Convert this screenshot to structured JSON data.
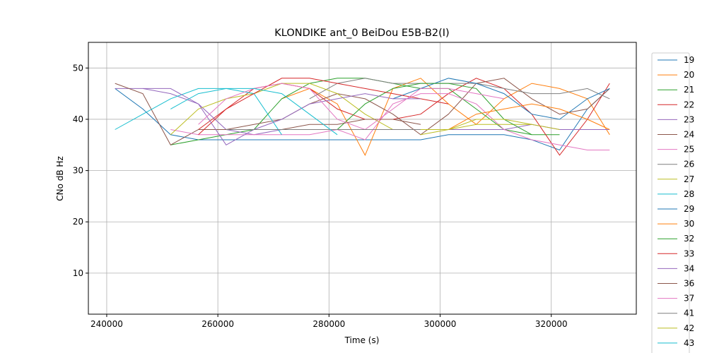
{
  "chart_data": {
    "type": "line",
    "title": "KLONDIKE ant_0 BeiDou E5B-B2(I)",
    "x_label": "Time (s)",
    "y_label": "CNo dB Hz",
    "xlim": [
      236700,
      335300
    ],
    "ylim": [
      2,
      55
    ],
    "xticks": [
      240000,
      260000,
      280000,
      300000,
      320000
    ],
    "yticks": [
      10,
      20,
      30,
      40,
      50
    ],
    "grid": true,
    "legend": "outside right",
    "x": [
      241500,
      246500,
      251500,
      256500,
      261500,
      266500,
      271500,
      276500,
      281500,
      286500,
      291500,
      296500,
      301500,
      306500,
      311500,
      316500,
      321500,
      326500,
      330500
    ],
    "series": [
      {
        "name": "19",
        "color": "#1f77b4",
        "values": [
          46,
          42,
          37,
          36,
          36,
          36,
          36,
          36,
          36,
          36,
          36,
          36,
          37,
          37,
          37,
          36,
          34,
          42,
          46
        ]
      },
      {
        "name": "20",
        "color": "#ff7f0e",
        "values": [
          null,
          null,
          null,
          null,
          null,
          null,
          44,
          46,
          43,
          33,
          46,
          48,
          43,
          39,
          44,
          47,
          46,
          44,
          37
        ]
      },
      {
        "name": "21",
        "color": "#2ca02c",
        "values": [
          null,
          null,
          35,
          36,
          37,
          38,
          44,
          47,
          48,
          48,
          47,
          46,
          46,
          42,
          38,
          37,
          37,
          null,
          null
        ]
      },
      {
        "name": "22",
        "color": "#d62728",
        "values": [
          null,
          null,
          null,
          38,
          42,
          46,
          47,
          46,
          42,
          40,
          40,
          41,
          45,
          48,
          46,
          41,
          33,
          40,
          47
        ]
      },
      {
        "name": "23",
        "color": "#9467bd",
        "values": [
          46,
          46,
          45,
          43,
          38,
          37,
          38,
          38,
          38,
          38,
          38,
          38,
          38,
          38,
          38,
          39,
          38,
          38,
          38
        ]
      },
      {
        "name": "24",
        "color": "#8c564b",
        "values": [
          47,
          45,
          35,
          38,
          38,
          39,
          40,
          43,
          45,
          44,
          41,
          37,
          41,
          47,
          48,
          44,
          41,
          42,
          46
        ]
      },
      {
        "name": "25",
        "color": "#e377c2",
        "values": [
          null,
          null,
          38,
          37,
          37,
          37,
          37,
          37,
          38,
          36,
          43,
          45,
          45,
          43,
          38,
          36,
          35,
          34,
          34
        ]
      },
      {
        "name": "26",
        "color": "#7f7f7f",
        "values": [
          null,
          null,
          null,
          null,
          null,
          null,
          null,
          44,
          47,
          48,
          47,
          47,
          47,
          47,
          46,
          45,
          45,
          46,
          44
        ]
      },
      {
        "name": "27",
        "color": "#bcbd22",
        "values": [
          null,
          null,
          37,
          42,
          44,
          45,
          47,
          47,
          45,
          41,
          38,
          38,
          38,
          39,
          39,
          39,
          38,
          null,
          null
        ]
      },
      {
        "name": "28",
        "color": "#17becf",
        "values": [
          38,
          41,
          44,
          46,
          46,
          45,
          37,
          null,
          null,
          null,
          null,
          null,
          null,
          null,
          null,
          null,
          null,
          null,
          null
        ]
      },
      {
        "name": "29",
        "color": "#1f77b4",
        "values": [
          null,
          null,
          null,
          null,
          null,
          null,
          null,
          null,
          null,
          null,
          44,
          46,
          48,
          47,
          45,
          41,
          40,
          44,
          46
        ]
      },
      {
        "name": "30",
        "color": "#ff7f0e",
        "values": [
          null,
          null,
          null,
          null,
          null,
          null,
          null,
          null,
          null,
          null,
          null,
          null,
          38,
          41,
          42,
          43,
          42,
          40,
          38
        ]
      },
      {
        "name": "32",
        "color": "#2ca02c",
        "values": [
          null,
          null,
          null,
          null,
          null,
          null,
          null,
          null,
          38,
          43,
          46,
          47,
          47,
          46,
          40,
          37,
          null,
          null,
          null
        ]
      },
      {
        "name": "33",
        "color": "#d62728",
        "values": [
          null,
          null,
          null,
          37,
          42,
          45,
          48,
          48,
          47,
          46,
          45,
          44,
          43,
          null,
          null,
          null,
          null,
          null,
          null
        ]
      },
      {
        "name": "34",
        "color": "#9467bd",
        "values": [
          null,
          46,
          46,
          43,
          35,
          38,
          40,
          43,
          44,
          45,
          44,
          44,
          null,
          null,
          null,
          null,
          null,
          null,
          null
        ]
      },
      {
        "name": "36",
        "color": "#8c564b",
        "values": [
          null,
          null,
          null,
          null,
          null,
          null,
          38,
          39,
          39,
          40,
          40,
          39,
          null,
          null,
          null,
          null,
          null,
          null,
          null
        ]
      },
      {
        "name": "37",
        "color": "#e377c2",
        "values": [
          null,
          null,
          null,
          39,
          44,
          46,
          47,
          46,
          40,
          38,
          42,
          46,
          46,
          45,
          44,
          null,
          null,
          null,
          null
        ]
      },
      {
        "name": "41",
        "color": "#7f7f7f",
        "values": [
          null,
          null,
          null,
          null,
          38,
          38,
          38,
          38,
          38,
          38,
          38,
          38,
          null,
          null,
          null,
          null,
          null,
          null,
          null
        ]
      },
      {
        "name": "42",
        "color": "#bcbd22",
        "values": [
          null,
          null,
          null,
          null,
          null,
          null,
          null,
          null,
          null,
          null,
          null,
          37,
          38,
          40,
          40,
          39,
          null,
          null,
          null
        ]
      },
      {
        "name": "43",
        "color": "#17becf",
        "values": [
          null,
          null,
          42,
          45,
          46,
          46,
          45,
          41,
          37,
          null,
          null,
          null,
          null,
          null,
          null,
          null,
          null,
          null,
          null
        ]
      }
    ]
  }
}
